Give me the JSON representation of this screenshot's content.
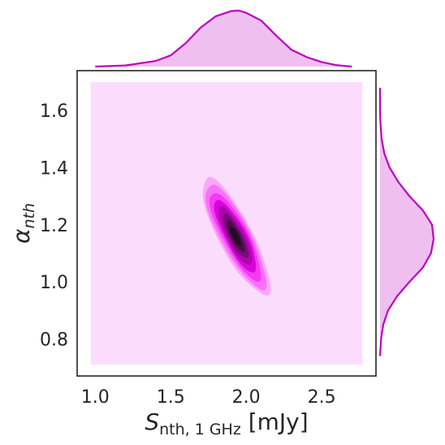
{
  "chart_data": {
    "type": "kde-joint",
    "title": "",
    "xlabel": {
      "main": "S",
      "sub": "nth, 1 GHz",
      "unit": " [mJy]"
    },
    "ylabel": {
      "main": "α",
      "sub": "nth"
    },
    "xlim": [
      0.88,
      2.86
    ],
    "ylim": [
      0.67,
      1.74
    ],
    "xticks": [
      1.0,
      1.5,
      2.0,
      2.5
    ],
    "xtick_labels": [
      "1.0",
      "1.5",
      "2.0",
      "2.5"
    ],
    "yticks": [
      0.8,
      1.0,
      1.2,
      1.4,
      1.6
    ],
    "ytick_labels": [
      "0.8",
      "1.0",
      "1.2",
      "1.4",
      "1.6"
    ],
    "grid": false,
    "color": "#bf00bf",
    "fill_colors": [
      "#fcdcfc",
      "#fba6fb",
      "#f872f8",
      "#f53af5",
      "#d906d9",
      "#ad06ad",
      "#7d0b7d",
      "#4a0d4a",
      "#220d22"
    ],
    "density_support": {
      "x": [
        0.97,
        2.77
      ],
      "y": [
        0.71,
        1.7
      ]
    },
    "density_peak": {
      "x": 1.93,
      "y": 1.16
    },
    "density_orientation_deg": -42,
    "contours": [
      {
        "level": 1,
        "semi_major": 0.29,
        "semi_minor": 0.088
      },
      {
        "level": 2,
        "semi_major": 0.26,
        "semi_minor": 0.078
      },
      {
        "level": 3,
        "semi_major": 0.22,
        "semi_minor": 0.066
      },
      {
        "level": 4,
        "semi_major": 0.18,
        "semi_minor": 0.055
      },
      {
        "level": 5,
        "semi_major": 0.145,
        "semi_minor": 0.045
      },
      {
        "level": 6,
        "semi_major": 0.11,
        "semi_minor": 0.035
      },
      {
        "level": 7,
        "semi_major": 0.078,
        "semi_minor": 0.025
      },
      {
        "level": 8,
        "semi_major": 0.045,
        "semi_minor": 0.016
      }
    ],
    "marginal_x": {
      "x": [
        1.0,
        1.2,
        1.4,
        1.5,
        1.6,
        1.7,
        1.8,
        1.9,
        1.95,
        2.0,
        2.1,
        2.2,
        2.3,
        2.4,
        2.5,
        2.6,
        2.7
      ],
      "density": [
        0.0,
        0.02,
        0.1,
        0.2,
        0.42,
        0.7,
        0.9,
        0.99,
        1.0,
        0.96,
        0.82,
        0.55,
        0.3,
        0.17,
        0.08,
        0.025,
        0.0
      ]
    },
    "marginal_y": {
      "y": [
        0.74,
        0.8,
        0.85,
        0.9,
        0.95,
        1.0,
        1.05,
        1.1,
        1.15,
        1.2,
        1.25,
        1.3,
        1.35,
        1.4,
        1.45,
        1.5,
        1.55,
        1.6,
        1.65,
        1.68
      ],
      "density": [
        0.0,
        0.02,
        0.06,
        0.15,
        0.32,
        0.55,
        0.8,
        0.95,
        1.0,
        0.97,
        0.8,
        0.55,
        0.34,
        0.18,
        0.08,
        0.03,
        0.01,
        0.0,
        0.0,
        0.0
      ]
    }
  }
}
